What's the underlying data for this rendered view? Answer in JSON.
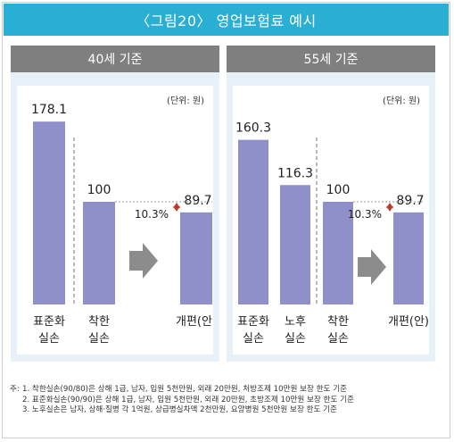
{
  "title": "〈그림20〉 영업보험료 예시",
  "unit_label": "(단위: 원)",
  "colors": {
    "bar": "#8f8fca",
    "accent": "#2aaed3",
    "panel_bg": "#e9f1f8",
    "header_bg": "#7f7f7f",
    "arrow": "#8c8c8c",
    "marker": "#c0392b"
  },
  "chart_data": [
    {
      "type": "bar",
      "title": "40세 기준",
      "categories": [
        [
          "표준화",
          "실손"
        ],
        [
          "착한",
          "실손"
        ],
        [
          "개편(안)"
        ]
      ],
      "values": [
        178.1,
        100,
        89.7
      ],
      "value_labels": [
        "178.1",
        "100",
        "89.7"
      ],
      "change_label": "10.3%",
      "ylim": [
        0,
        190
      ],
      "divider_after": [
        0
      ]
    },
    {
      "type": "bar",
      "title": "55세 기준",
      "categories": [
        [
          "표준화",
          "실손"
        ],
        [
          "노후",
          "실손"
        ],
        [
          "착한",
          "실손"
        ],
        [
          "개편(안)"
        ]
      ],
      "values": [
        160.3,
        116.3,
        100,
        89.7
      ],
      "value_labels": [
        "160.3",
        "116.3",
        "100",
        "89.7"
      ],
      "change_label": "10.3%",
      "ylim": [
        0,
        190
      ],
      "divider_after": [
        1
      ]
    }
  ],
  "notes": {
    "prefix": "주:",
    "lines": [
      "1. 착한실손(90/80)은 상해 1급, 남자, 입원 5천만원, 외래 20만원, 처방조제 10만원 보장 한도 기준",
      "2. 표준화실손(90/90)은 상해 1급, 남자, 입원 5천만원, 외래 20만원, 초방조제 10만원 보장 한도 기준",
      "3. 노후실손은 남자, 상해·질병 각 1억원, 상급병실차액 2천만원, 요양병원 5천만원 보장 한도 기준"
    ]
  }
}
